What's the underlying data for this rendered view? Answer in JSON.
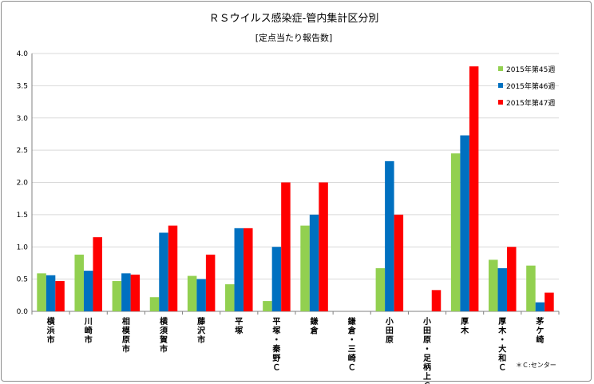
{
  "chart_data": {
    "type": "bar",
    "title": "ＲＳウイルス感染症-管内集計区分別",
    "subtitle": "[定点当たり報告数]",
    "ylim": [
      0,
      4.0
    ],
    "yticks": [
      "0.0",
      "0.5",
      "1.0",
      "1.5",
      "2.0",
      "2.5",
      "3.0",
      "3.5",
      "4.0"
    ],
    "grid": true,
    "legend_position": "right",
    "categories": [
      "横浜市",
      "川崎市",
      "相模原市",
      "横須賀市",
      "藤沢市",
      "平塚",
      "平塚・秦野Ｃ",
      "鎌倉",
      "鎌倉・三崎Ｃ",
      "小田原",
      "小田原・足柄上Ｃ",
      "厚木",
      "厚木・大和Ｃ",
      "茅ケ崎"
    ],
    "series": [
      {
        "name": "2015年第45週",
        "color": "#92d050",
        "values": [
          0.59,
          0.88,
          0.47,
          0.22,
          0.55,
          0.42,
          0.16,
          1.33,
          0,
          0.67,
          0,
          2.45,
          0.8,
          0.71
        ]
      },
      {
        "name": "2015年第46週",
        "color": "#0070c0",
        "values": [
          0.56,
          0.63,
          0.59,
          1.22,
          0.5,
          1.29,
          1.0,
          1.5,
          0,
          2.33,
          0,
          2.73,
          0.67,
          0.14
        ]
      },
      {
        "name": "2015年第47週",
        "color": "#ff0000",
        "values": [
          0.47,
          1.15,
          0.57,
          1.33,
          0.88,
          1.29,
          2.0,
          2.0,
          0,
          1.5,
          0.33,
          3.8,
          1.0,
          0.29
        ]
      }
    ],
    "note": "＊Ｃ:センター"
  }
}
